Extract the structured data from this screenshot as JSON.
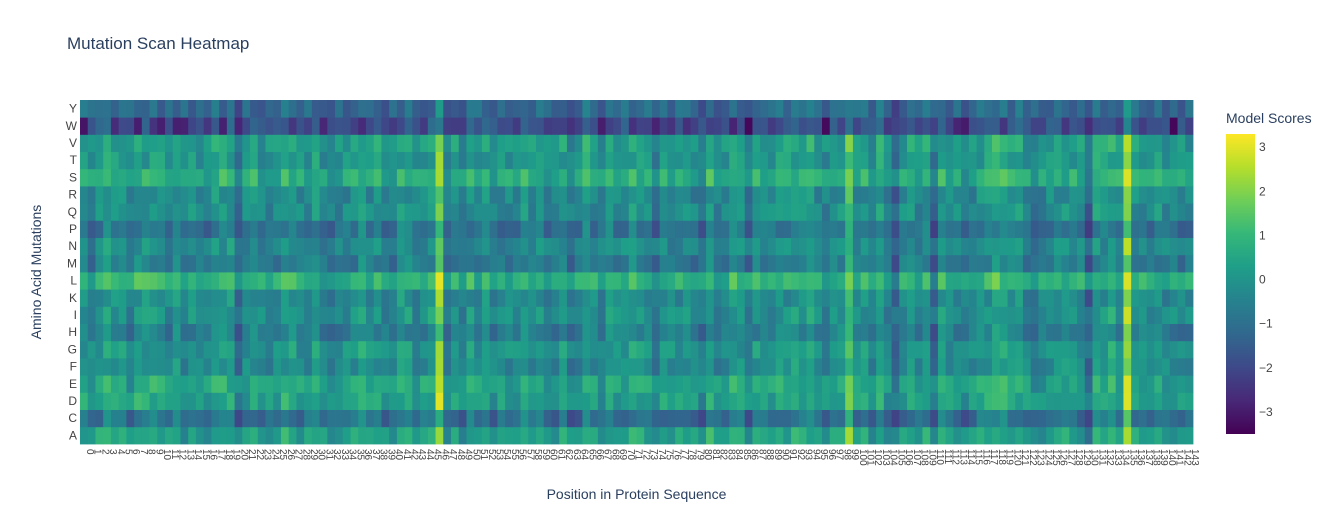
{
  "chart_data": {
    "type": "heatmap",
    "title": "Mutation Scan Heatmap",
    "xlabel": "Position in Protein Sequence",
    "ylabel": "Amino Acid Mutations",
    "x_range": [
      0,
      143
    ],
    "y_categories": [
      "A",
      "C",
      "D",
      "E",
      "F",
      "G",
      "H",
      "I",
      "K",
      "L",
      "M",
      "N",
      "P",
      "Q",
      "R",
      "S",
      "T",
      "V",
      "W",
      "Y"
    ],
    "colorscale": "Viridis",
    "colorscale_stops": [
      "#440154",
      "#482878",
      "#3e4989",
      "#31688e",
      "#26828e",
      "#1f9e89",
      "#35b779",
      "#6ece58",
      "#b5de2b",
      "#fde725"
    ],
    "colorbar": {
      "title": "Model Scores",
      "range": [
        -3.5,
        3.3
      ],
      "ticks": [
        -3,
        -2,
        -1,
        0,
        1,
        2,
        3
      ],
      "tick_labels": [
        "−3",
        "−2",
        "−1",
        "0",
        "1",
        "2",
        "3"
      ]
    },
    "row_means": {
      "A": 0.3,
      "C": -1.0,
      "D": 0.3,
      "E": 0.4,
      "F": -0.2,
      "G": 0.0,
      "H": -0.6,
      "I": -0.1,
      "K": -0.3,
      "L": 0.8,
      "M": -0.7,
      "N": -0.3,
      "P": -0.9,
      "Q": -0.2,
      "R": -0.3,
      "S": 0.6,
      "T": 0.0,
      "V": 0.2,
      "W": -1.8,
      "Y": -1.2
    },
    "column_effects": [
      {
        "position": 46,
        "shift": 2.0
      },
      {
        "position": 59,
        "shift": 0.8
      },
      {
        "position": 65,
        "shift": 0.7
      },
      {
        "position": 99,
        "shift": 1.2
      },
      {
        "position": 130,
        "shift": -1.3
      },
      {
        "position": 133,
        "shift": 0.9
      },
      {
        "position": 135,
        "shift": 2.8
      },
      {
        "position": 20,
        "shift": -0.4
      },
      {
        "position": 40,
        "shift": -0.3
      },
      {
        "position": 80,
        "shift": -0.6
      },
      {
        "position": 92,
        "shift": 0.6
      },
      {
        "position": 105,
        "shift": -0.8
      },
      {
        "position": 110,
        "shift": -0.7
      },
      {
        "position": 118,
        "shift": 0.4
      }
    ]
  }
}
